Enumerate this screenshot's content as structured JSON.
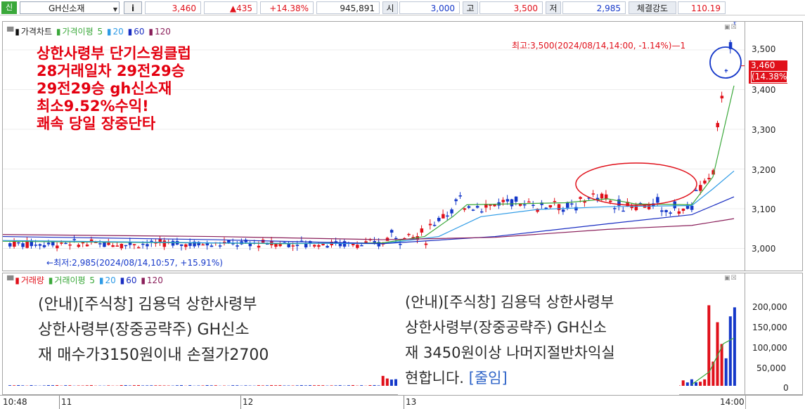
{
  "quote_bar": {
    "market_badge": "신",
    "stock_name": "GH신소재",
    "info_button": "i",
    "current_price": "3,460",
    "change": "▲435",
    "change_rate": "+14.38%",
    "volume": "945,891",
    "open_label": "시",
    "open_value": "3,000",
    "high_label": "고",
    "high_value": "3,500",
    "low_label": "저",
    "low_value": "2,985",
    "strength_label": "체결강도",
    "strength_value": "110.19",
    "colors": {
      "up": "#e0101a",
      "down": "#1538c9",
      "badge": "#3aa83a"
    }
  },
  "price_panel": {
    "legend": {
      "title": "가격차트",
      "ma_label": "가격이평",
      "ma_periods": [
        "5",
        "20",
        "60",
        "120"
      ],
      "ma_colors": [
        "#3aa83a",
        "#2e9be6",
        "#1a2ec2",
        "#8a1f5a"
      ]
    },
    "y_ticks": [
      "3,500",
      "3,400",
      "3,300",
      "3,200",
      "3,100",
      "3,000"
    ],
    "last_price_badge": {
      "price": "3,460",
      "rate": "(14.38%)"
    },
    "high_annotation": "최고:3,500(2024/08/14,14:00, -1.14%)",
    "low_annotation": "최저:2,985(2024/08/14,10:57, +15.91%)",
    "overlay_text": [
      "상한사령부 단기스윙클럽",
      "28거래일차 29전29승",
      "29전29승 gh신소재",
      "최소9.52%수익!",
      "쾌속 당일 장중단타"
    ]
  },
  "volume_panel": {
    "legend": {
      "title": "거래량",
      "ma_label": "거래이평",
      "ma_periods": [
        "5",
        "20",
        "60",
        "120"
      ]
    },
    "y_ticks": [
      "200,000",
      "150,000",
      "100,000",
      "50,000",
      "0"
    ]
  },
  "notices": {
    "left": [
      "(안내)[주식창] 김용덕 상한사령부",
      "상한사령부(장중공략주) GH신소",
      "재 매수가3150원이내 손절가2700"
    ],
    "right": [
      "(안내)[주식창] 김용덕 상한사령부",
      "상한사령부(장중공략주) GH신소",
      "재 3450원이상 나머지절반차익실",
      "현합니다."
    ],
    "right_link": "[줄임]"
  },
  "time_axis": {
    "labels": [
      "10:48",
      "11",
      "12",
      "13",
      "14:00"
    ]
  }
}
